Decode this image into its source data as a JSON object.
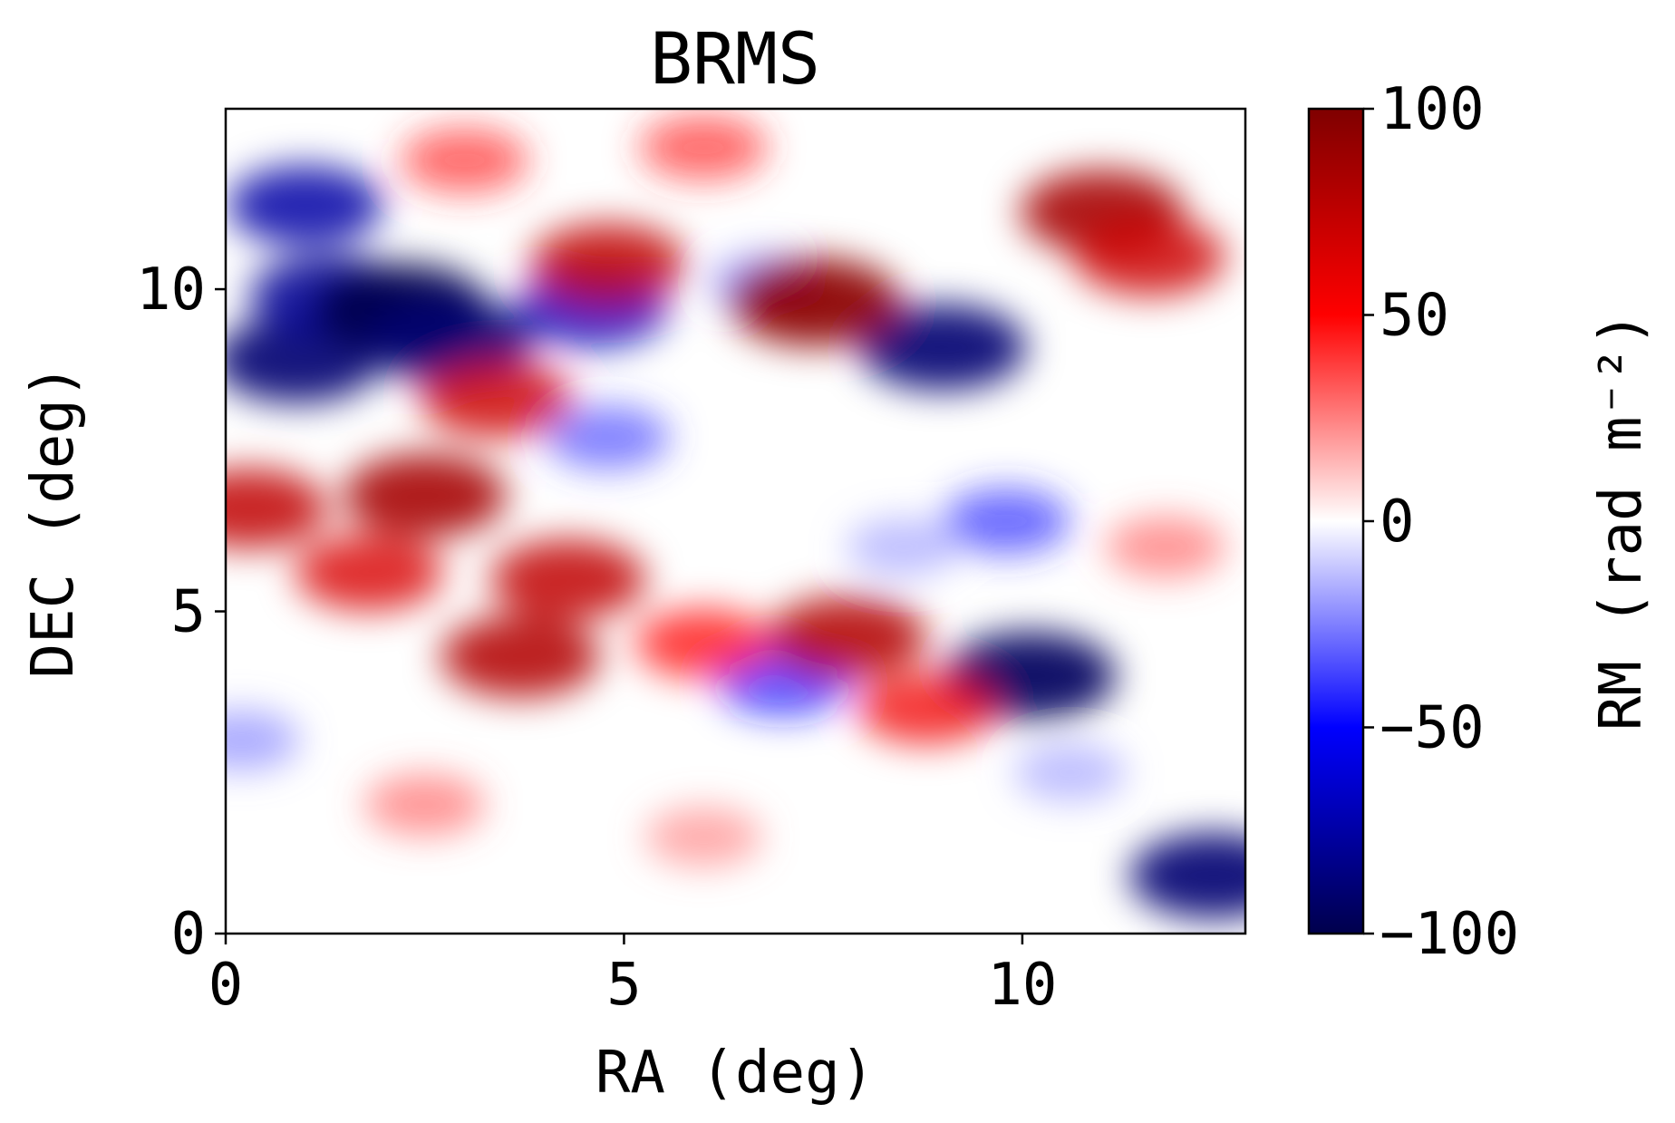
{
  "chart_data": {
    "type": "heatmap",
    "title": "BRMS",
    "xlabel": "RA (deg)",
    "ylabel": "DEC (deg)",
    "xlim": [
      0,
      12.8
    ],
    "ylim": [
      0,
      12.8
    ],
    "xticks": [
      0,
      5,
      10
    ],
    "yticks": [
      0,
      5,
      10
    ],
    "colorbar": {
      "label": "RM (rad m⁻²)",
      "range": [
        -100,
        100
      ],
      "ticks": [
        100,
        50,
        0,
        -50,
        -100
      ],
      "colormap": "seismic",
      "colors": [
        "#00004c",
        "#0000ff",
        "#ffffff",
        "#ff0000",
        "#7f0000"
      ]
    },
    "features": [
      {
        "ra": 0.9,
        "dec": 8.9,
        "rm": -90
      },
      {
        "ra": 1.0,
        "dec": 11.3,
        "rm": -75
      },
      {
        "ra": 1.3,
        "dec": 9.9,
        "rm": -80
      },
      {
        "ra": 2.2,
        "dec": 9.7,
        "rm": -100
      },
      {
        "ra": 2.8,
        "dec": 9.2,
        "rm": -90
      },
      {
        "ra": 4.6,
        "dec": 9.7,
        "rm": -70
      },
      {
        "ra": 4.8,
        "dec": 7.7,
        "rm": -35
      },
      {
        "ra": 6.8,
        "dec": 10.1,
        "rm": -25
      },
      {
        "ra": 9.0,
        "dec": 9.1,
        "rm": -90
      },
      {
        "ra": 9.8,
        "dec": 6.4,
        "rm": -40
      },
      {
        "ra": 10.1,
        "dec": 4.0,
        "rm": -95
      },
      {
        "ra": 7.0,
        "dec": 3.9,
        "rm": -45
      },
      {
        "ra": 12.4,
        "dec": 0.9,
        "rm": -90
      },
      {
        "ra": 0.2,
        "dec": 3.0,
        "rm": -25
      },
      {
        "ra": 2.5,
        "dec": 6.8,
        "rm": 85
      },
      {
        "ra": 3.4,
        "dec": 8.3,
        "rm": 70
      },
      {
        "ra": 1.8,
        "dec": 5.6,
        "rm": 65
      },
      {
        "ra": 0.3,
        "dec": 6.6,
        "rm": 75
      },
      {
        "ra": 4.3,
        "dec": 5.5,
        "rm": 75
      },
      {
        "ra": 3.7,
        "dec": 4.3,
        "rm": 80
      },
      {
        "ra": 4.8,
        "dec": 10.4,
        "rm": 75
      },
      {
        "ra": 7.4,
        "dec": 9.8,
        "rm": 95
      },
      {
        "ra": 7.8,
        "dec": 4.6,
        "rm": 80
      },
      {
        "ra": 6.0,
        "dec": 4.5,
        "rm": 50
      },
      {
        "ra": 8.8,
        "dec": 3.5,
        "rm": 55
      },
      {
        "ra": 11.0,
        "dec": 11.2,
        "rm": 85
      },
      {
        "ra": 11.6,
        "dec": 10.5,
        "rm": 70
      },
      {
        "ra": 3.0,
        "dec": 12.0,
        "rm": 40
      },
      {
        "ra": 6.0,
        "dec": 12.2,
        "rm": 40
      },
      {
        "ra": 11.8,
        "dec": 6.0,
        "rm": 30
      },
      {
        "ra": 2.5,
        "dec": 2.0,
        "rm": 30
      },
      {
        "ra": 6.0,
        "dec": 1.5,
        "rm": 25
      },
      {
        "ra": 8.5,
        "dec": 6.0,
        "rm": -20
      },
      {
        "ra": 10.6,
        "dec": 2.5,
        "rm": -20
      }
    ]
  }
}
